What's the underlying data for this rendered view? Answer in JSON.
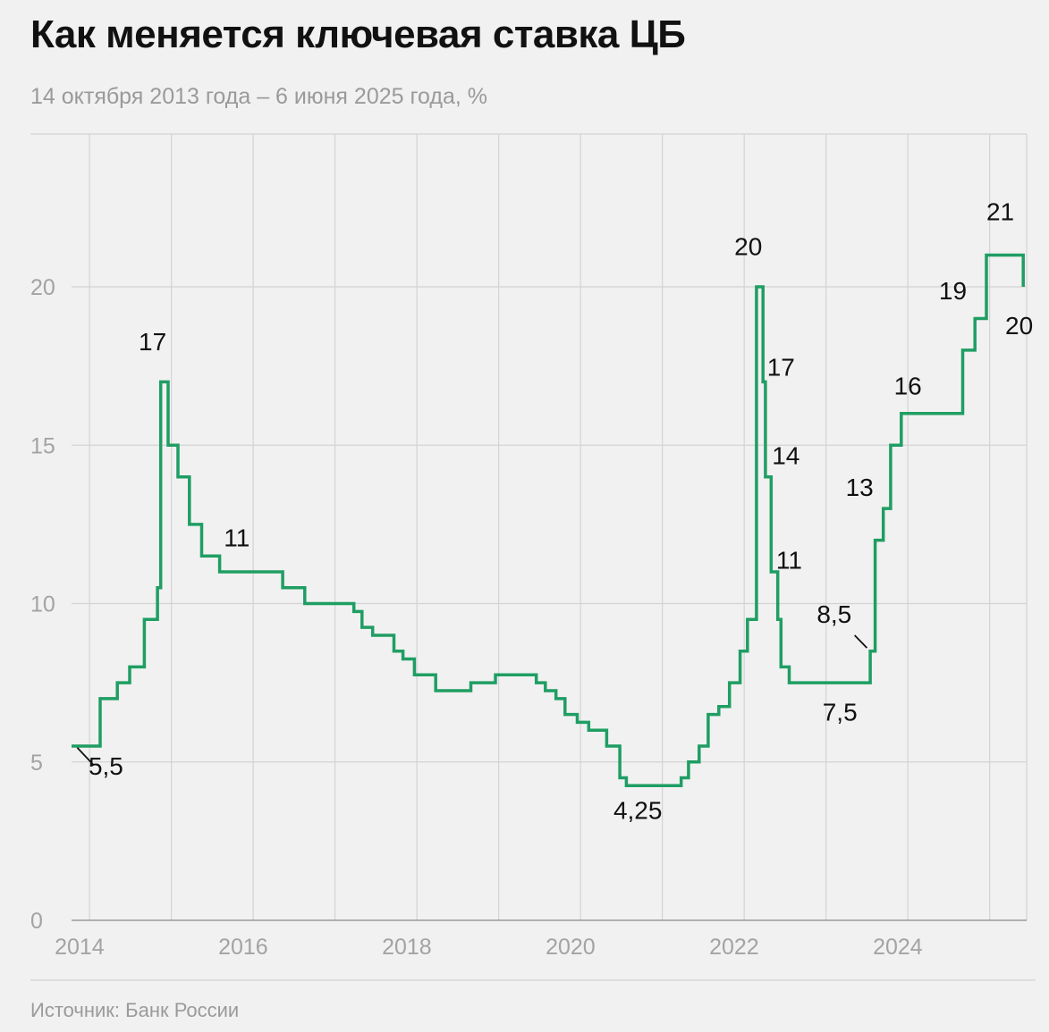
{
  "header": {
    "title": "Как меняется ключевая ставка ЦБ",
    "subtitle": "14 октября 2013 года – 6 июня 2025 года, %"
  },
  "footer": {
    "source": "Источник: Банк России"
  },
  "colors": {
    "line": "#1f9e63",
    "grid": "#d3d3d3",
    "background": "#f1f1f1"
  },
  "chart_data": {
    "type": "line",
    "step": true,
    "title": "Как меняется ключевая ставка ЦБ",
    "subtitle": "14 октября 2013 года – 6 июня 2025 года, %",
    "xlabel": "",
    "ylabel": "",
    "xlim": [
      2013.78,
      2025.43
    ],
    "ylim": [
      0,
      24
    ],
    "y_ticks": [
      0,
      5,
      10,
      15,
      20
    ],
    "y_tick_labels": [
      "0",
      "5",
      "10",
      "15",
      "20"
    ],
    "x_ticks": [
      2014,
      2016,
      2018,
      2020,
      2022,
      2024
    ],
    "x_tick_labels": [
      "2014",
      "2016",
      "2018",
      "2020",
      "2022",
      "2024"
    ],
    "x_gridlines": [
      2013,
      2014,
      2015,
      2016,
      2017,
      2018,
      2019,
      2020,
      2021,
      2022,
      2023,
      2024,
      2025
    ],
    "grid": true,
    "series": [
      {
        "name": "",
        "x": [
          2013.78,
          2014.13,
          2014.34,
          2014.49,
          2014.67,
          2014.83,
          2014.87,
          2014.96,
          2015.08,
          2015.22,
          2015.37,
          2015.59,
          2016.36,
          2016.63,
          2017.23,
          2017.33,
          2017.46,
          2017.72,
          2017.83,
          2017.97,
          2018.23,
          2018.66,
          2018.96,
          2019.46,
          2019.57,
          2019.7,
          2019.81,
          2019.96,
          2020.1,
          2020.32,
          2020.48,
          2020.56,
          2021.23,
          2021.32,
          2021.45,
          2021.56,
          2021.69,
          2021.82,
          2021.95,
          2022.04,
          2022.15,
          2022.23,
          2022.26,
          2022.33,
          2022.41,
          2022.45,
          2022.55,
          2022.7,
          2023.54,
          2023.6,
          2023.7,
          2023.79,
          2023.92,
          2024.04,
          2024.67,
          2024.82,
          2024.96,
          2025.41
        ],
        "values": [
          5.5,
          7,
          7.5,
          8,
          9.5,
          10.5,
          17,
          15,
          14,
          12.5,
          11.5,
          11,
          10.5,
          10,
          9.75,
          9.25,
          9,
          8.5,
          8.25,
          7.75,
          7.25,
          7.5,
          7.75,
          7.5,
          7.25,
          7,
          6.5,
          6.25,
          6,
          5.5,
          4.5,
          4.25,
          4.5,
          5,
          5.5,
          6.5,
          6.75,
          7.5,
          8.5,
          9.5,
          20,
          17,
          14,
          11,
          9.5,
          8,
          7.5,
          7.5,
          8.5,
          12,
          13,
          15,
          16,
          16,
          18,
          19,
          21,
          20
        ]
      }
    ],
    "annotations": [
      {
        "text": "5,5",
        "x": 2014.2,
        "y": 4.6
      },
      {
        "text": "17",
        "x": 2014.77,
        "y": 18.0
      },
      {
        "text": "11",
        "x": 2015.8,
        "y": 11.8
      },
      {
        "text": "4,25",
        "x": 2020.7,
        "y": 3.2
      },
      {
        "text": "20",
        "x": 2022.05,
        "y": 21.0
      },
      {
        "text": "17",
        "x": 2022.45,
        "y": 17.2
      },
      {
        "text": "14",
        "x": 2022.51,
        "y": 14.4
      },
      {
        "text": "11",
        "x": 2022.55,
        "y": 11.1
      },
      {
        "text": "8,5",
        "x": 2023.1,
        "y": 9.4
      },
      {
        "text": "7,5",
        "x": 2023.17,
        "y": 6.3
      },
      {
        "text": "13",
        "x": 2023.41,
        "y": 13.4
      },
      {
        "text": "16",
        "x": 2024.0,
        "y": 16.6
      },
      {
        "text": "19",
        "x": 2024.55,
        "y": 19.6
      },
      {
        "text": "21",
        "x": 2025.13,
        "y": 22.1
      },
      {
        "text": "20",
        "x": 2025.36,
        "y": 18.5
      }
    ],
    "leaders": [
      {
        "from": [
          2013.85,
          5.45
        ],
        "to": [
          2014.05,
          4.9
        ]
      },
      {
        "from": [
          2023.35,
          9.0
        ],
        "to": [
          2023.5,
          8.6
        ]
      }
    ]
  }
}
